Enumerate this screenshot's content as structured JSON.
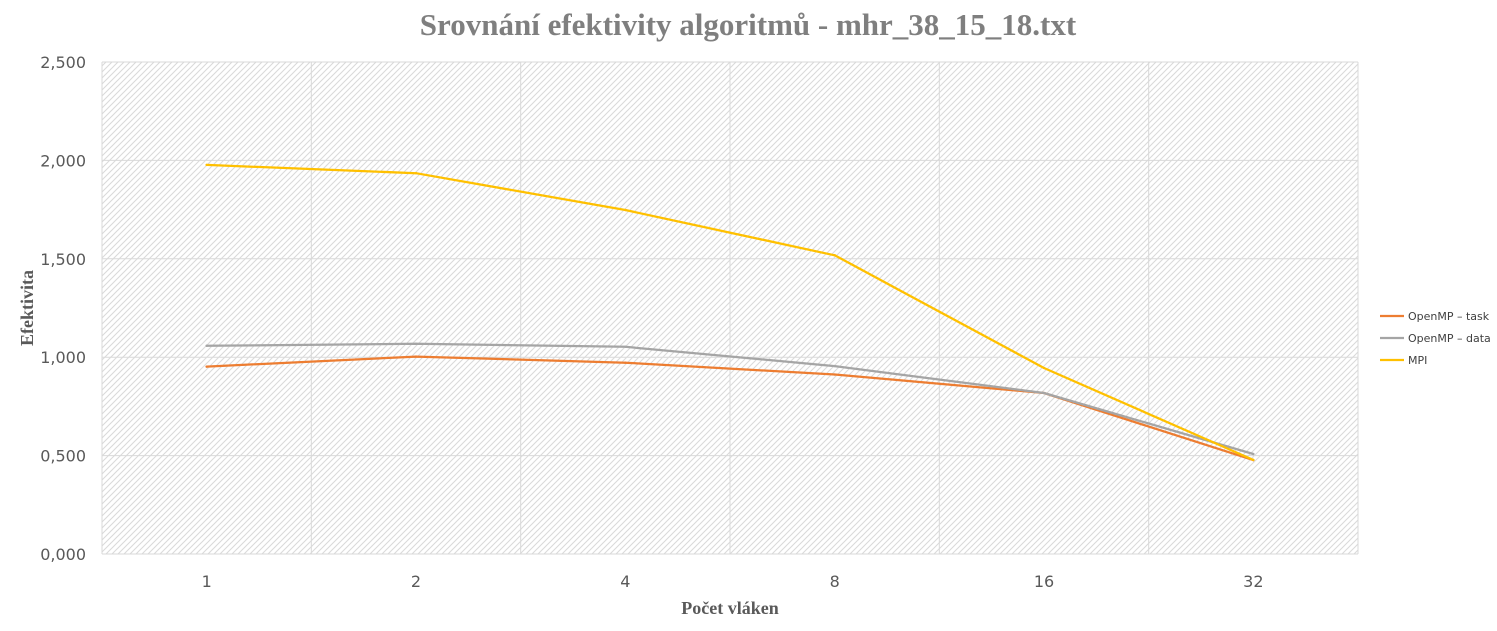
{
  "chart_data": {
    "type": "line",
    "title": "Srovnání efektivity algoritmů - mhr_38_15_18.txt",
    "xlabel": "Počet vláken",
    "ylabel": "Efektivita",
    "categories": [
      "1",
      "2",
      "4",
      "8",
      "16",
      "32"
    ],
    "ylim": [
      0,
      2.5
    ],
    "yticks": [
      "0,000",
      "0,500",
      "1,000",
      "1,500",
      "2,000",
      "2,500"
    ],
    "grid": true,
    "legend_position": "right",
    "series": [
      {
        "name": "OpenMP – task",
        "color": "#ed7d31",
        "values": [
          0.952,
          1.003,
          0.972,
          0.912,
          0.818,
          0.477
        ]
      },
      {
        "name": "OpenMP – data",
        "color": "#a5a5a5",
        "values": [
          1.058,
          1.068,
          1.053,
          0.955,
          0.818,
          0.508
        ]
      },
      {
        "name": "MPI",
        "color": "#ffc000",
        "values": [
          1.977,
          1.935,
          1.748,
          1.518,
          0.945,
          0.478
        ]
      }
    ]
  }
}
